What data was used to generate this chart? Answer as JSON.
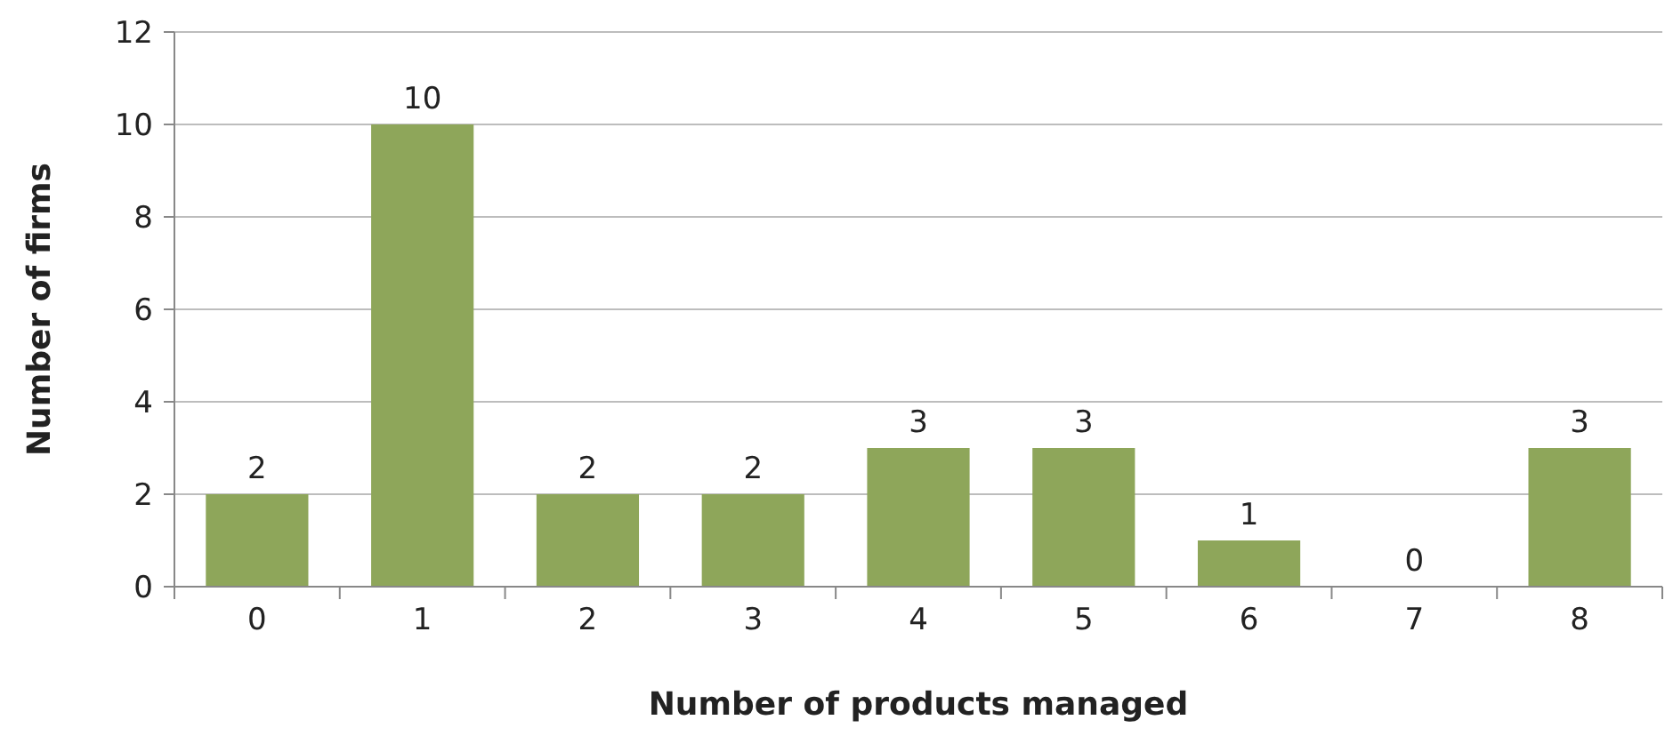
{
  "chart_data": {
    "type": "bar",
    "xlabel": "Number of products managed",
    "ylabel": "Number of firms",
    "categories": [
      "0",
      "1",
      "2",
      "3",
      "4",
      "5",
      "6",
      "7",
      "8"
    ],
    "values": [
      2,
      10,
      2,
      2,
      3,
      3,
      1,
      0,
      3
    ],
    "color": "#8ea65a",
    "ylim": [
      0,
      12
    ],
    "yticks": [
      0,
      2,
      4,
      6,
      8,
      10,
      12
    ],
    "grid": "y",
    "data_labels": true
  }
}
